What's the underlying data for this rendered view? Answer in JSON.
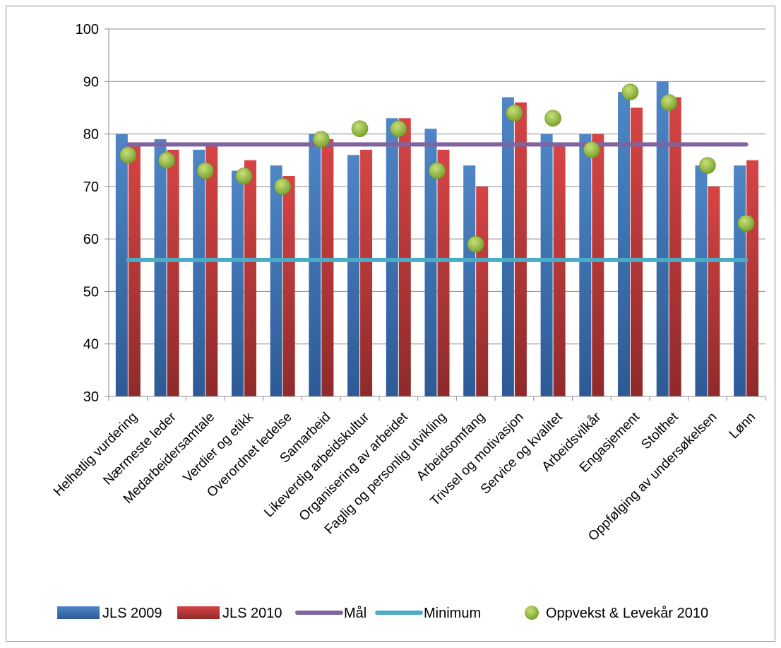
{
  "chart_data": {
    "type": "bar",
    "title": "",
    "xlabel": "",
    "ylabel": "",
    "ylim": [
      30,
      100
    ],
    "yticks": [
      30,
      40,
      50,
      60,
      70,
      80,
      90,
      100
    ],
    "grid": true,
    "legend_position": "bottom",
    "categories": [
      "Helhetlig vurdering",
      "Nærmeste leder",
      "Medarbeidersamtale",
      "Verdier og etikk",
      "Overordnet ledelse",
      "Samarbeid",
      "Likeverdig arbeidskultur",
      "Organisering av arbeidet",
      "Faglig og personlig utvikling",
      "Arbeidsomfang",
      "Trivsel og motivasjon",
      "Service og kvalitet",
      "Arbeidsvilkår",
      "Engasjement",
      "Stolthet",
      "Oppfølging av undersøkelsen",
      "Lønn"
    ],
    "series": [
      {
        "name": "JLS 2009",
        "kind": "bar",
        "color": "#4a7ebf",
        "values": [
          80,
          79,
          77,
          73,
          74,
          80,
          76,
          83,
          81,
          74,
          87,
          80,
          80,
          88,
          90,
          74,
          74
        ]
      },
      {
        "name": "JLS 2010",
        "kind": "bar",
        "color": "#c0393b",
        "values": [
          78,
          77,
          78,
          75,
          72,
          79,
          77,
          83,
          77,
          70,
          86,
          78,
          80,
          85,
          87,
          70,
          75
        ]
      },
      {
        "name": "Mål",
        "kind": "line",
        "color": "#8064a2",
        "value": 78
      },
      {
        "name": "Minimum",
        "kind": "line",
        "color": "#4bacc6",
        "value": 56
      },
      {
        "name": "Oppvekst & Levekår 2010",
        "kind": "scatter",
        "color": "#8fbc3c",
        "values": [
          76,
          75,
          73,
          72,
          70,
          79,
          81,
          81,
          73,
          59,
          84,
          83,
          77,
          88,
          86,
          74,
          63
        ]
      }
    ]
  }
}
